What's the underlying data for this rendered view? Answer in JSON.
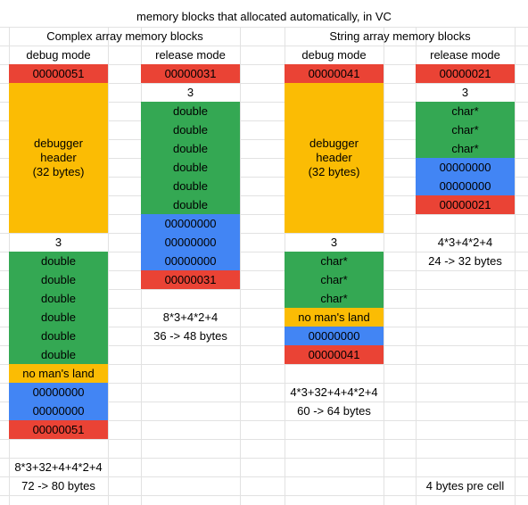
{
  "title": "memory blocks that allocated automatically, in VC",
  "headers": {
    "complex": "Complex array memory blocks",
    "string": "String array memory blocks",
    "debug_mode": "debug mode",
    "release_mode": "release mode"
  },
  "colors": {
    "red": "#ea4335",
    "yellow": "#fbbc04",
    "green": "#34a853",
    "blue": "#4285f4",
    "grid": "#e2e2e2"
  },
  "complex_debug": {
    "start": "00000051",
    "debugger_header": [
      "debugger",
      "header",
      "(32 bytes)"
    ],
    "count": "3",
    "items": [
      "double",
      "double",
      "double",
      "double",
      "double",
      "double"
    ],
    "no_mans_land": "no man's land",
    "zeros": [
      "00000000",
      "00000000"
    ],
    "end": "00000051",
    "formula": "8*3+32+4+4*2+4",
    "size": "72 -> 80 bytes"
  },
  "complex_release": {
    "start": "00000031",
    "count": "3",
    "items": [
      "double",
      "double",
      "double",
      "double",
      "double",
      "double"
    ],
    "zeros": [
      "00000000",
      "00000000",
      "00000000"
    ],
    "end": "00000031",
    "formula": "8*3+4*2+4",
    "size": "36 -> 48 bytes"
  },
  "string_debug": {
    "start": "00000041",
    "debugger_header": [
      "debugger",
      "header",
      "(32 bytes)"
    ],
    "count": "3",
    "items": [
      "char*",
      "char*",
      "char*"
    ],
    "no_mans_land": "no man's land",
    "zeros": [
      "00000000"
    ],
    "end": "00000041",
    "formula": "4*3+32+4+4*2+4",
    "size": "60 -> 64 bytes"
  },
  "string_release": {
    "start": "00000021",
    "count": "3",
    "items": [
      "char*",
      "char*",
      "char*"
    ],
    "zeros": [
      "00000000",
      "00000000"
    ],
    "end": "00000021",
    "formula": "4*3+4*2+4",
    "size": "24 -> 32 bytes"
  },
  "note": "4 bytes pre cell"
}
